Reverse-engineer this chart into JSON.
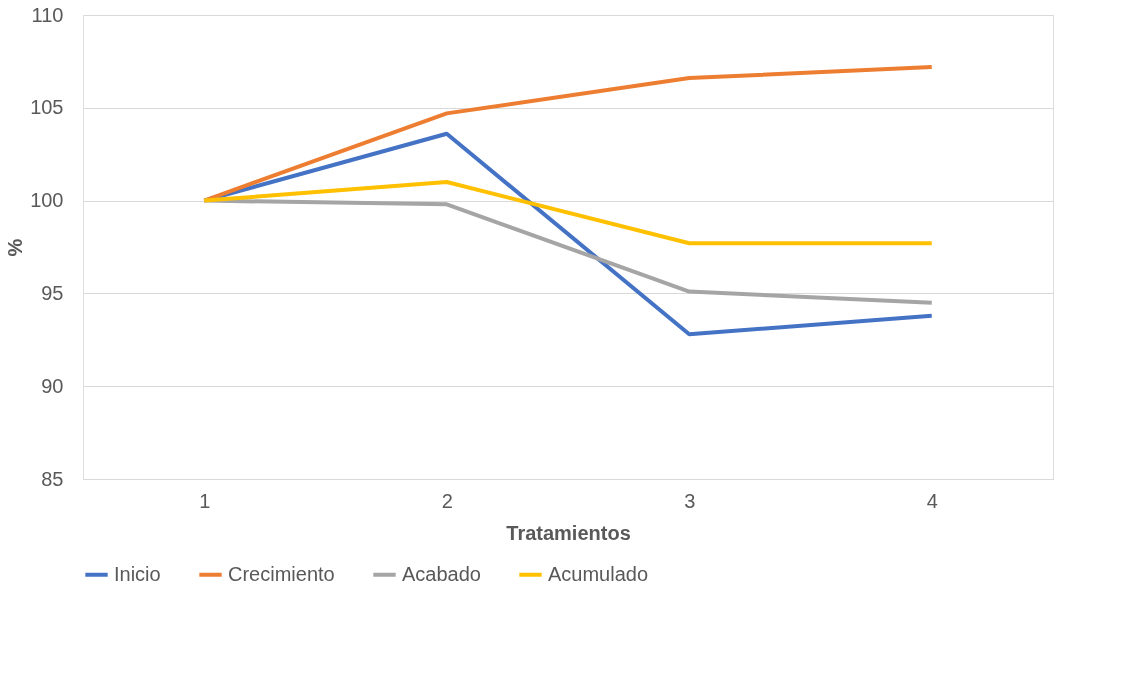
{
  "chart_data": {
    "type": "line",
    "xlabel": "Tratamientos",
    "ylabel": "%",
    "categories": [
      "1",
      "2",
      "3",
      "4"
    ],
    "series": [
      {
        "name": "Inicio",
        "color": "#4472c4",
        "values": [
          100,
          103.6,
          92.8,
          93.8
        ]
      },
      {
        "name": "Crecimiento",
        "color": "#ed7d31",
        "values": [
          100,
          104.7,
          106.6,
          107.2
        ]
      },
      {
        "name": "Acabado",
        "color": "#a5a5a5",
        "values": [
          100,
          99.8,
          95.1,
          94.5
        ]
      },
      {
        "name": "Acumulado",
        "color": "#ffc000",
        "values": [
          100,
          101.0,
          97.7,
          97.7
        ]
      }
    ],
    "ylim": [
      85,
      110
    ],
    "yticks": [
      85,
      90,
      95,
      100,
      105,
      110
    ],
    "grid": "y",
    "legend": "bottom",
    "marker": "none",
    "line_style": "solid"
  }
}
